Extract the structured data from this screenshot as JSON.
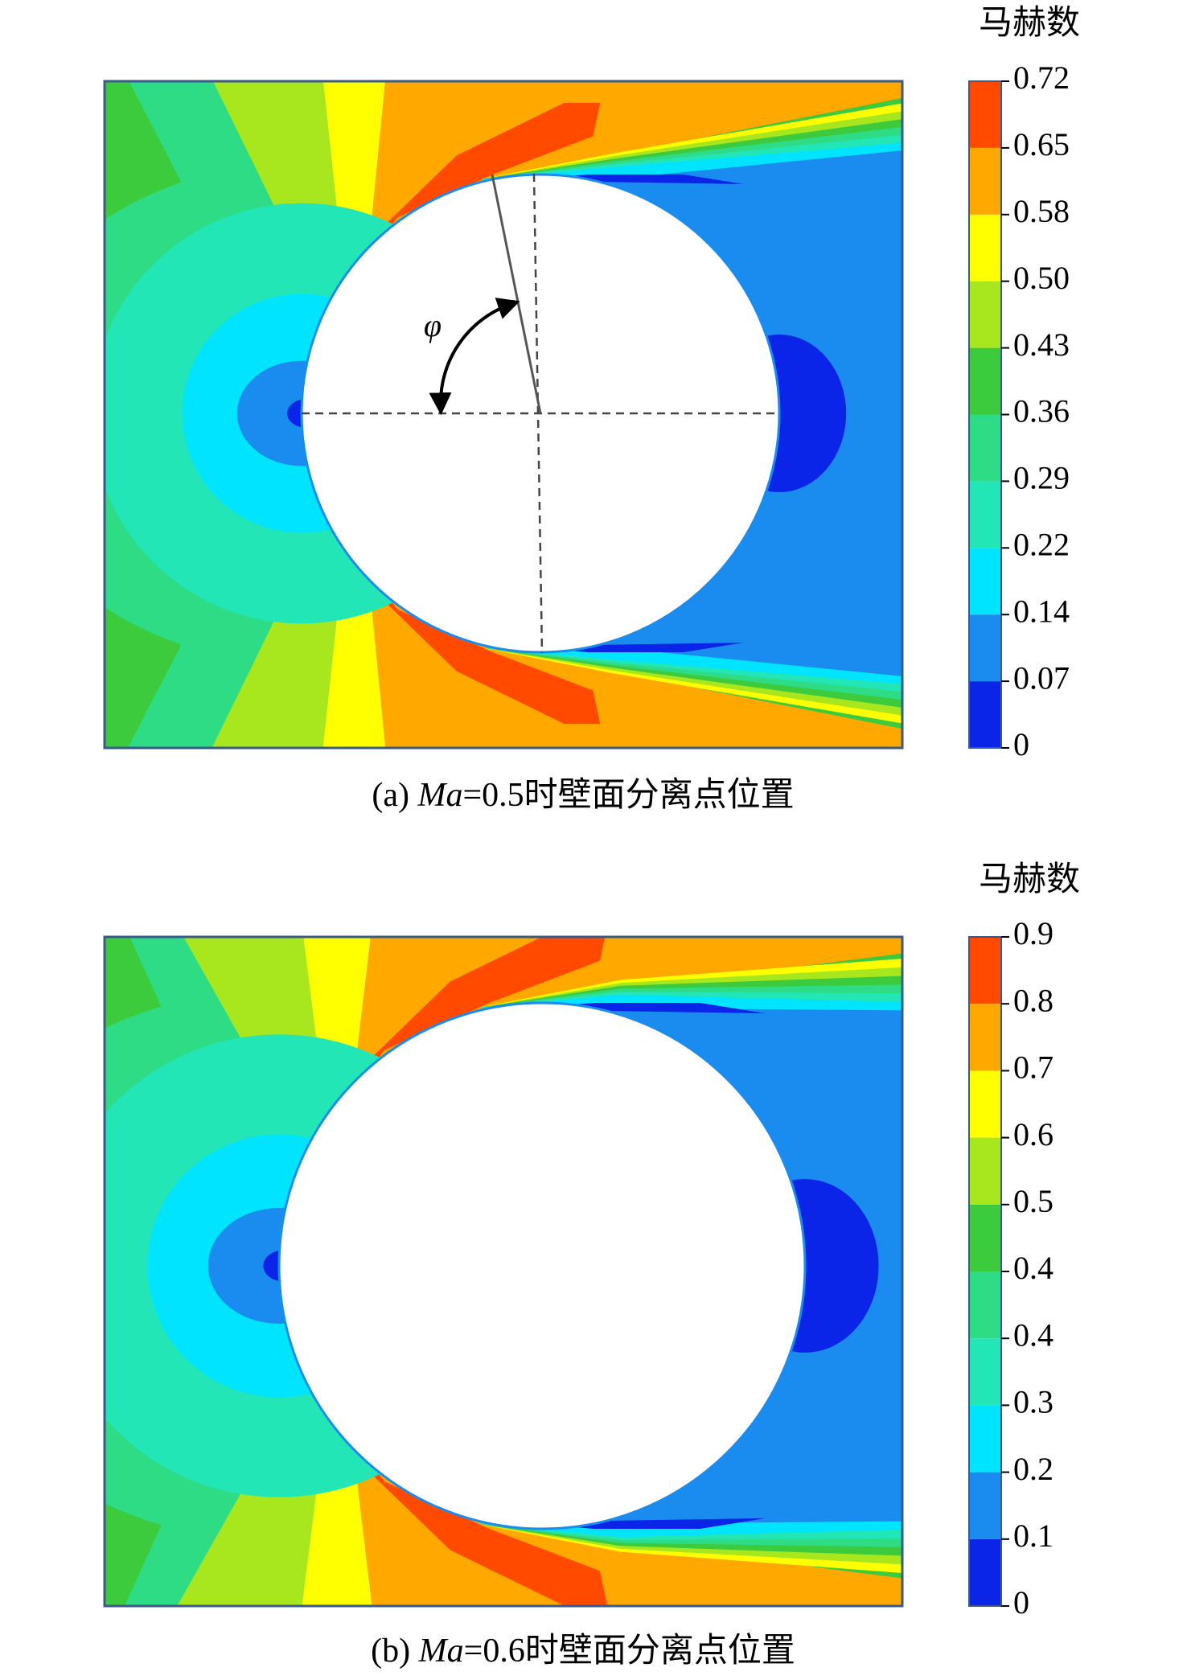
{
  "panels": [
    {
      "colorbar": {
        "title": "马赫数",
        "ticks": [
          "0",
          "0.07",
          "0.14",
          "0.22",
          "0.29",
          "0.36",
          "0.43",
          "0.50",
          "0.58",
          "0.65",
          "0.72"
        ]
      },
      "annotation": "φ",
      "caption": {
        "prefix": "(a) ",
        "symbol": "Ma",
        "rest": "=0.5时壁面分离点位置"
      }
    },
    {
      "colorbar": {
        "title": "马赫数",
        "ticks": [
          "0",
          "0.1",
          "0.2",
          "0.3",
          "0.4",
          "0.4",
          "0.5",
          "0.6",
          "0.7",
          "0.8",
          "0.9"
        ]
      },
      "caption": {
        "prefix": "(b) ",
        "symbol": "Ma",
        "rest": "=0.6时壁面分离点位置"
      }
    }
  ],
  "band_colors": [
    "#0a24e8",
    "#1a8cf0",
    "#00e4ff",
    "#22e6b6",
    "#2edc86",
    "#3ccb3c",
    "#a8e61e",
    "#ffff00",
    "#ffa800",
    "#ff4a00"
  ]
}
